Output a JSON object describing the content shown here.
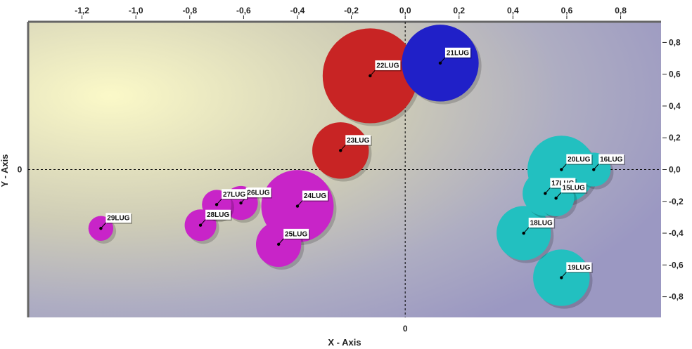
{
  "chart_data": {
    "type": "scatter",
    "title": "",
    "xlabel": "X - Axis",
    "ylabel": "Y - Axis",
    "xlim": [
      -1.4,
      0.95
    ],
    "ylim": [
      -0.93,
      0.93
    ],
    "x_ticks": [
      "-1,2",
      "-1,0",
      "-0,8",
      "-0,6",
      "-0,4",
      "-0,2",
      "0,0",
      "0,2",
      "0,4",
      "0,6",
      "0,8"
    ],
    "x_tick_values": [
      -1.2,
      -1.0,
      -0.8,
      -0.6,
      -0.4,
      -0.2,
      0.0,
      0.2,
      0.4,
      0.6,
      0.8
    ],
    "y_ticks": [
      "0,8",
      "0,6",
      "0,4",
      "0,2",
      "0,0",
      "-0,2",
      "-0,4",
      "-0,6",
      "-0,8"
    ],
    "y_tick_values": [
      0.8,
      0.6,
      0.4,
      0.2,
      0.0,
      -0.2,
      -0.4,
      -0.6,
      -0.8
    ],
    "origin_x_label": "0",
    "origin_y_label": "0",
    "grid": false,
    "points": [
      {
        "label": "21LUG",
        "x": 0.13,
        "y": 0.67,
        "size": 0.34,
        "color": "#2020c8"
      },
      {
        "label": "22LUG",
        "x": -0.13,
        "y": 0.59,
        "size": 0.42,
        "color": "#c82424"
      },
      {
        "label": "23LUG",
        "x": -0.24,
        "y": 0.12,
        "size": 0.25,
        "color": "#c82424"
      },
      {
        "label": "24LUG",
        "x": -0.4,
        "y": -0.23,
        "size": 0.32,
        "color": "#c824c8"
      },
      {
        "label": "25LUG",
        "x": -0.47,
        "y": -0.47,
        "size": 0.2,
        "color": "#c824c8"
      },
      {
        "label": "26LUG",
        "x": -0.61,
        "y": -0.21,
        "size": 0.15,
        "color": "#c824c8"
      },
      {
        "label": "27LUG",
        "x": -0.7,
        "y": -0.22,
        "size": 0.13,
        "color": "#c824c8"
      },
      {
        "label": "28LUG",
        "x": -0.76,
        "y": -0.35,
        "size": 0.14,
        "color": "#c824c8"
      },
      {
        "label": "29LUG",
        "x": -1.13,
        "y": -0.37,
        "size": 0.11,
        "color": "#c824c8"
      },
      {
        "label": "20LUG",
        "x": 0.58,
        "y": 0.0,
        "size": 0.3,
        "color": "#22c0c0"
      },
      {
        "label": "16LUG",
        "x": 0.7,
        "y": 0.0,
        "size": 0.15,
        "color": "#22c0c0"
      },
      {
        "label": "17LUG",
        "x": 0.52,
        "y": -0.15,
        "size": 0.2,
        "color": "#22c0c0"
      },
      {
        "label": "15LUG",
        "x": 0.56,
        "y": -0.18,
        "size": 0.16,
        "color": "#22c0c0"
      },
      {
        "label": "18LUG",
        "x": 0.44,
        "y": -0.4,
        "size": 0.24,
        "color": "#22c0c0"
      },
      {
        "label": "19LUG",
        "x": 0.58,
        "y": -0.68,
        "size": 0.25,
        "color": "#22c0c0"
      }
    ]
  }
}
